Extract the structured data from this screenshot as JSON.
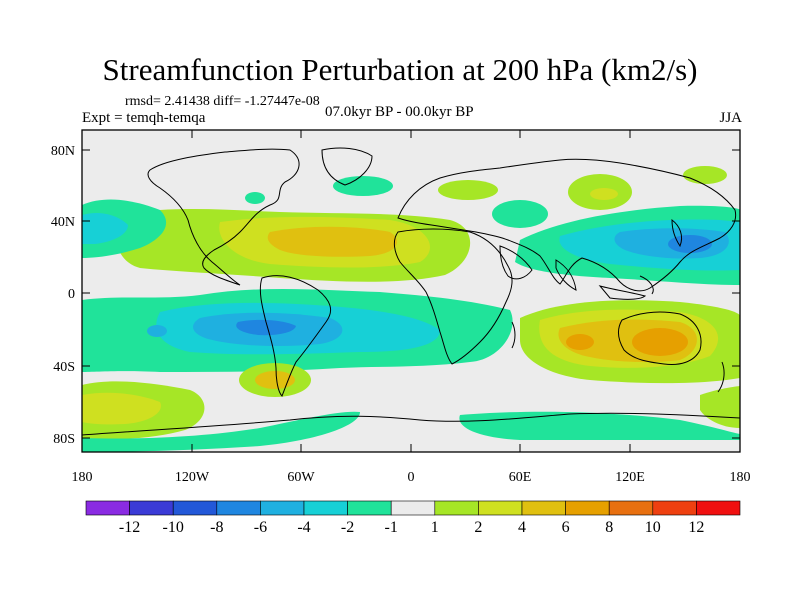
{
  "title": "Streamfunction Perturbation at 200 hPa (km2/s)",
  "stats": "rmsd= 2.41438 diff= -1.27447e-08",
  "experiment": "Expt = temqh-temqa",
  "period": "07.0kyr BP - 00.0kyr BP",
  "season": "JJA",
  "axes": {
    "lat_labels": [
      "80N",
      "40N",
      "0",
      "40S",
      "80S"
    ],
    "lon_labels": [
      "180",
      "120W",
      "60W",
      "0",
      "60E",
      "120E",
      "180"
    ]
  },
  "colorbar": {
    "labels": [
      "-12",
      "-10",
      "-8",
      "-6",
      "-4",
      "-2",
      "-1",
      "1",
      "2",
      "4",
      "6",
      "8",
      "10",
      "12"
    ],
    "colors": [
      "#8a2be2",
      "#3b3bd6",
      "#2358d8",
      "#1f86e0",
      "#1fb0e0",
      "#17d0d6",
      "#20e39a",
      "#ececec",
      "#a6e626",
      "#cfe020",
      "#e0c010",
      "#e6a000",
      "#e87010",
      "#ee4010",
      "#f01010"
    ]
  },
  "field_colors": {
    "neutral": "#ececec",
    "neg1": "#20e39a",
    "neg2": "#17d0d6",
    "neg4": "#1fb0e0",
    "neg6": "#1f86e0",
    "pos1": "#a6e626",
    "pos2": "#cfe020",
    "pos4": "#e0c010",
    "pos6": "#e6a000"
  }
}
